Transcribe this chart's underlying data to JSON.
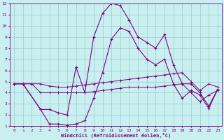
{
  "xlabel": "Windchill (Refroidissement éolien,°C)",
  "background_color": "#c8f0f0",
  "grid_color": "#a0c8c8",
  "line_color": "#800080",
  "xlim": [
    -0.5,
    23.5
  ],
  "ylim": [
    1,
    12
  ],
  "xticks": [
    0,
    1,
    2,
    3,
    4,
    5,
    6,
    7,
    8,
    9,
    10,
    11,
    12,
    13,
    14,
    15,
    16,
    17,
    18,
    19,
    20,
    21,
    22,
    23
  ],
  "yticks": [
    1,
    2,
    3,
    4,
    5,
    6,
    7,
    8,
    9,
    10,
    11,
    12
  ],
  "curve_flat_top_x": [
    0,
    1,
    2,
    3,
    4,
    5,
    6,
    7,
    8,
    9,
    10,
    11,
    12,
    13,
    14,
    15,
    16,
    17,
    18,
    19,
    20,
    21,
    22,
    23
  ],
  "curve_flat_top_y": [
    4.8,
    4.8,
    4.8,
    4.8,
    4.6,
    4.5,
    4.5,
    4.6,
    4.7,
    4.8,
    4.9,
    5.0,
    5.1,
    5.2,
    5.3,
    5.4,
    5.5,
    5.6,
    5.7,
    5.8,
    5.0,
    4.2,
    4.8,
    4.5
  ],
  "curve_flat_bot_x": [
    0,
    1,
    2,
    3,
    4,
    5,
    6,
    7,
    8,
    9,
    10,
    11,
    12,
    13,
    14,
    15,
    16,
    17,
    18,
    19,
    20,
    21,
    22,
    23
  ],
  "curve_flat_bot_y": [
    4.8,
    4.8,
    4.8,
    4.0,
    4.0,
    4.0,
    4.0,
    4.0,
    4.0,
    4.1,
    4.2,
    4.3,
    4.4,
    4.5,
    4.5,
    4.5,
    4.5,
    4.6,
    4.7,
    4.8,
    4.0,
    3.2,
    3.8,
    4.2
  ],
  "curve_arch_top_x": [
    0,
    1,
    3,
    4,
    5,
    6,
    7,
    8,
    9,
    10,
    11,
    12,
    13,
    14,
    15,
    16,
    17,
    18,
    19,
    20,
    21,
    22,
    23
  ],
  "curve_arch_top_y": [
    4.8,
    4.8,
    2.5,
    2.5,
    2.2,
    2.0,
    6.3,
    4.0,
    9.0,
    11.1,
    12.0,
    11.8,
    10.5,
    9.0,
    8.5,
    8.0,
    9.2,
    6.5,
    4.8,
    4.8,
    4.0,
    2.8,
    4.3
  ],
  "curve_arch_bot_x": [
    0,
    1,
    3,
    4,
    5,
    6,
    7,
    8,
    9,
    10,
    11,
    12,
    13,
    14,
    15,
    16,
    17,
    18,
    19,
    20,
    21,
    22,
    23
  ],
  "curve_arch_bot_y": [
    4.8,
    4.8,
    2.5,
    1.2,
    1.2,
    1.1,
    1.2,
    1.5,
    3.5,
    5.8,
    8.8,
    9.8,
    9.5,
    8.0,
    7.0,
    6.5,
    7.0,
    4.8,
    3.5,
    4.2,
    3.8,
    2.6,
    4.3
  ]
}
